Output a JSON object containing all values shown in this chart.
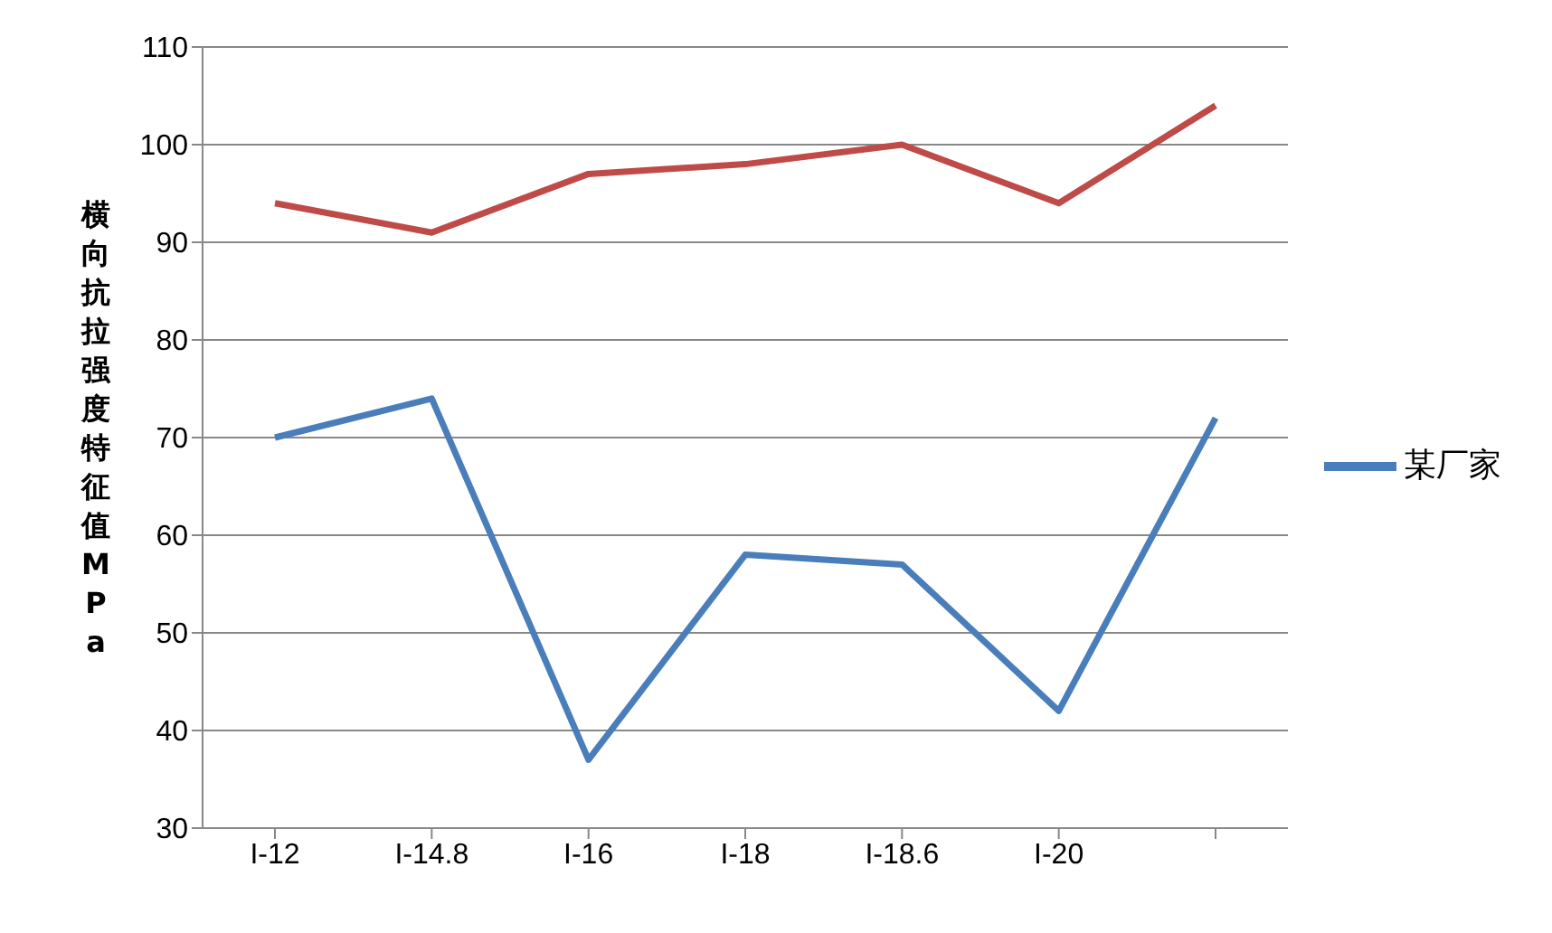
{
  "chart_data": {
    "type": "line",
    "ylabel": "横向抗拉强度特征值MPa",
    "categories": [
      "I-12",
      "I-14.8",
      "I-16",
      "I-18",
      "I-18.6",
      "I-20",
      null
    ],
    "series": [
      {
        "name": "某厂家",
        "color": "#4a7ebb",
        "values": [
          70,
          74,
          37,
          58,
          57,
          42,
          72
        ]
      },
      {
        "color": "#be4b48",
        "values": [
          94,
          91,
          97,
          98,
          100,
          94,
          104
        ]
      }
    ],
    "ylim": [
      30,
      110
    ],
    "yticks": [
      30,
      40,
      50,
      60,
      70,
      80,
      90,
      100,
      110
    ],
    "grid": "y",
    "legend": "right",
    "marker": "none",
    "line_style": "solid"
  }
}
